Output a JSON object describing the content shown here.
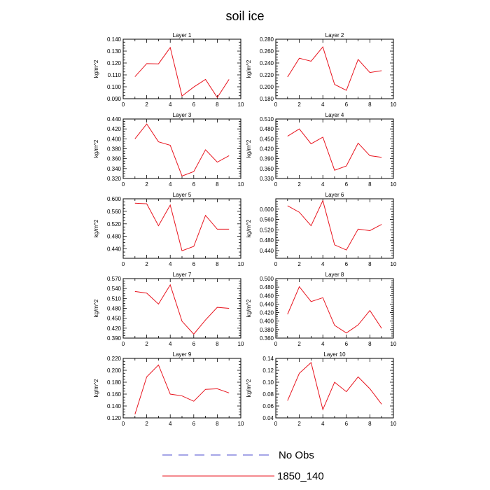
{
  "title": "soil ice",
  "legend": [
    {
      "label": "No Obs",
      "color": "#4b4bcf",
      "style": "dashed"
    },
    {
      "label": "1850_140",
      "color": "#e8141e",
      "style": "solid"
    }
  ],
  "chart_data": [
    {
      "type": "line",
      "title": "Layer 1",
      "ylabel": "kg/m^2",
      "xlim": [
        0,
        10
      ],
      "xticks": [
        0,
        2,
        4,
        6,
        8,
        10
      ],
      "ylim": [
        0.09,
        0.14
      ],
      "yticks": [
        "0.090",
        "0.100",
        "0.110",
        "0.120",
        "0.130",
        "0.140"
      ],
      "x": [
        1,
        2,
        3,
        4,
        5,
        6,
        7,
        8,
        9
      ],
      "series": [
        {
          "name": "1850_140",
          "color": "#e8141e",
          "values": [
            0.1085,
            0.1195,
            0.1193,
            0.133,
            0.0923,
            0.0998,
            0.1062,
            0.091,
            0.1062
          ]
        }
      ]
    },
    {
      "type": "line",
      "title": "Layer 2",
      "ylabel": "kg/m^2",
      "xlim": [
        0,
        10
      ],
      "xticks": [
        0,
        2,
        4,
        6,
        8,
        10
      ],
      "ylim": [
        0.18,
        0.28
      ],
      "yticks": [
        "0.180",
        "0.200",
        "0.220",
        "0.240",
        "0.260",
        "0.280"
      ],
      "x": [
        1,
        2,
        3,
        4,
        5,
        6,
        7,
        8,
        9
      ],
      "series": [
        {
          "name": "1850_140",
          "color": "#e8141e",
          "values": [
            0.2165,
            0.248,
            0.243,
            0.267,
            0.204,
            0.194,
            0.246,
            0.224,
            0.227
          ]
        }
      ]
    },
    {
      "type": "line",
      "title": "Layer 3",
      "ylabel": "kg/m^2",
      "xlim": [
        0,
        10
      ],
      "xticks": [
        0,
        2,
        4,
        6,
        8,
        10
      ],
      "ylim": [
        0.32,
        0.44
      ],
      "yticks": [
        "0.320",
        "0.340",
        "0.360",
        "0.380",
        "0.400",
        "0.420",
        "0.440"
      ],
      "x": [
        1,
        2,
        3,
        4,
        5,
        6,
        7,
        8,
        9
      ],
      "series": [
        {
          "name": "1850_140",
          "color": "#e8141e",
          "values": [
            0.4,
            0.43,
            0.394,
            0.387,
            0.325,
            0.334,
            0.378,
            0.353,
            0.366
          ]
        }
      ]
    },
    {
      "type": "line",
      "title": "Layer 4",
      "ylabel": "kg/m^2",
      "xlim": [
        0,
        10
      ],
      "xticks": [
        0,
        2,
        4,
        6,
        8,
        10
      ],
      "ylim": [
        0.33,
        0.51
      ],
      "yticks": [
        "0.330",
        "0.360",
        "0.390",
        "0.420",
        "0.450",
        "0.480",
        "0.510"
      ],
      "x": [
        1,
        2,
        3,
        4,
        5,
        6,
        7,
        8,
        9
      ],
      "series": [
        {
          "name": "1850_140",
          "color": "#e8141e",
          "values": [
            0.458,
            0.48,
            0.435,
            0.455,
            0.355,
            0.368,
            0.437,
            0.399,
            0.394
          ]
        }
      ]
    },
    {
      "type": "line",
      "title": "Layer 5",
      "ylabel": "kg/m^2",
      "xlim": [
        0,
        10
      ],
      "xticks": [
        0,
        2,
        4,
        6,
        8,
        10
      ],
      "ylim": [
        0.41,
        0.6
      ],
      "yticks": [
        "0.440",
        "0.480",
        "0.520",
        "0.560",
        "0.600"
      ],
      "x": [
        1,
        2,
        3,
        4,
        5,
        6,
        7,
        8,
        9
      ],
      "series": [
        {
          "name": "1850_140",
          "color": "#e8141e",
          "values": [
            0.586,
            0.584,
            0.514,
            0.58,
            0.434,
            0.448,
            0.547,
            0.503,
            0.503
          ]
        }
      ]
    },
    {
      "type": "line",
      "title": "Layer 6",
      "ylabel": "kg/m^2",
      "xlim": [
        0,
        10
      ],
      "xticks": [
        0,
        2,
        4,
        6,
        8,
        10
      ],
      "ylim": [
        0.41,
        0.64
      ],
      "yticks": [
        "0.440",
        "0.480",
        "0.520",
        "0.560",
        "0.600"
      ],
      "x": [
        1,
        2,
        3,
        4,
        5,
        6,
        7,
        8,
        9
      ],
      "series": [
        {
          "name": "1850_140",
          "color": "#e8141e",
          "values": [
            0.613,
            0.588,
            0.536,
            0.633,
            0.462,
            0.442,
            0.523,
            0.517,
            0.541
          ]
        }
      ]
    },
    {
      "type": "line",
      "title": "Layer 7",
      "ylabel": "kg/m^2",
      "xlim": [
        0,
        10
      ],
      "xticks": [
        0,
        2,
        4,
        6,
        8,
        10
      ],
      "ylim": [
        0.39,
        0.57
      ],
      "yticks": [
        "0.390",
        "0.420",
        "0.450",
        "0.480",
        "0.510",
        "0.540",
        "0.570"
      ],
      "x": [
        1,
        2,
        3,
        4,
        5,
        6,
        7,
        8,
        9
      ],
      "series": [
        {
          "name": "1850_140",
          "color": "#e8141e",
          "values": [
            0.531,
            0.526,
            0.493,
            0.551,
            0.441,
            0.402,
            0.445,
            0.483,
            0.48
          ]
        }
      ]
    },
    {
      "type": "line",
      "title": "Layer 8",
      "ylabel": "kg/m^2",
      "xlim": [
        0,
        10
      ],
      "xticks": [
        0,
        2,
        4,
        6,
        8,
        10
      ],
      "ylim": [
        0.36,
        0.5
      ],
      "yticks": [
        "0.360",
        "0.380",
        "0.400",
        "0.420",
        "0.440",
        "0.460",
        "0.480",
        "0.500"
      ],
      "x": [
        1,
        2,
        3,
        4,
        5,
        6,
        7,
        8,
        9
      ],
      "series": [
        {
          "name": "1850_140",
          "color": "#e8141e",
          "values": [
            0.416,
            0.481,
            0.446,
            0.455,
            0.39,
            0.372,
            0.391,
            0.425,
            0.383
          ]
        }
      ]
    },
    {
      "type": "line",
      "title": "Layer 9",
      "ylabel": "kg/m^2",
      "xlim": [
        0,
        10
      ],
      "xticks": [
        0,
        2,
        4,
        6,
        8,
        10
      ],
      "ylim": [
        0.12,
        0.22
      ],
      "yticks": [
        "0.120",
        "0.140",
        "0.160",
        "0.180",
        "0.200",
        "0.220"
      ],
      "x": [
        1,
        2,
        3,
        4,
        5,
        6,
        7,
        8,
        9
      ],
      "series": [
        {
          "name": "1850_140",
          "color": "#e8141e",
          "values": [
            0.126,
            0.189,
            0.209,
            0.16,
            0.157,
            0.148,
            0.168,
            0.169,
            0.162
          ]
        }
      ]
    },
    {
      "type": "line",
      "title": "Layer 10",
      "ylabel": "kg/m^2",
      "xlim": [
        0,
        10
      ],
      "xticks": [
        0,
        2,
        4,
        6,
        8,
        10
      ],
      "ylim": [
        0.04,
        0.14
      ],
      "yticks": [
        "0.04",
        "0.06",
        "0.08",
        "0.10",
        "0.12",
        "0.14"
      ],
      "x": [
        1,
        2,
        3,
        4,
        5,
        6,
        7,
        8,
        9
      ],
      "series": [
        {
          "name": "1850_140",
          "color": "#e8141e",
          "values": [
            0.069,
            0.115,
            0.133,
            0.054,
            0.1,
            0.084,
            0.109,
            0.089,
            0.063
          ]
        }
      ]
    }
  ]
}
